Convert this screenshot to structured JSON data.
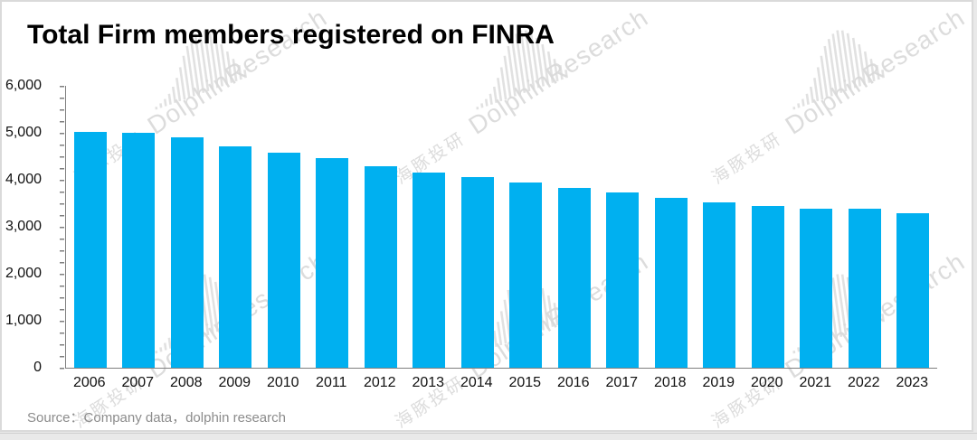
{
  "chart_data": {
    "type": "bar",
    "title": "Total Firm members registered on FINRA",
    "categories": [
      "2006",
      "2007",
      "2008",
      "2009",
      "2010",
      "2011",
      "2012",
      "2013",
      "2014",
      "2015",
      "2016",
      "2017",
      "2018",
      "2019",
      "2020",
      "2021",
      "2022",
      "2023"
    ],
    "values": [
      5029,
      5005,
      4895,
      4720,
      4578,
      4456,
      4289,
      4146,
      4067,
      3943,
      3835,
      3726,
      3607,
      3517,
      3435,
      3394,
      3378,
      3298
    ],
    "xlabel": "",
    "ylabel": "",
    "ylim": [
      0,
      6000
    ],
    "y_tick_interval": 1000,
    "y_minor_tick_interval": 250,
    "y_tick_labels": [
      "6,000",
      "5,000",
      "4,000",
      "3,000",
      "2,000",
      "1,000",
      "0"
    ],
    "grid": false,
    "legend": false,
    "bar_color": "#00b0f0",
    "axis_color": "#7f7f7f"
  },
  "source": {
    "label": "Source：Company data，dolphin research"
  },
  "watermark": {
    "cn": "海豚投研",
    "en": "DolphinResearch"
  }
}
